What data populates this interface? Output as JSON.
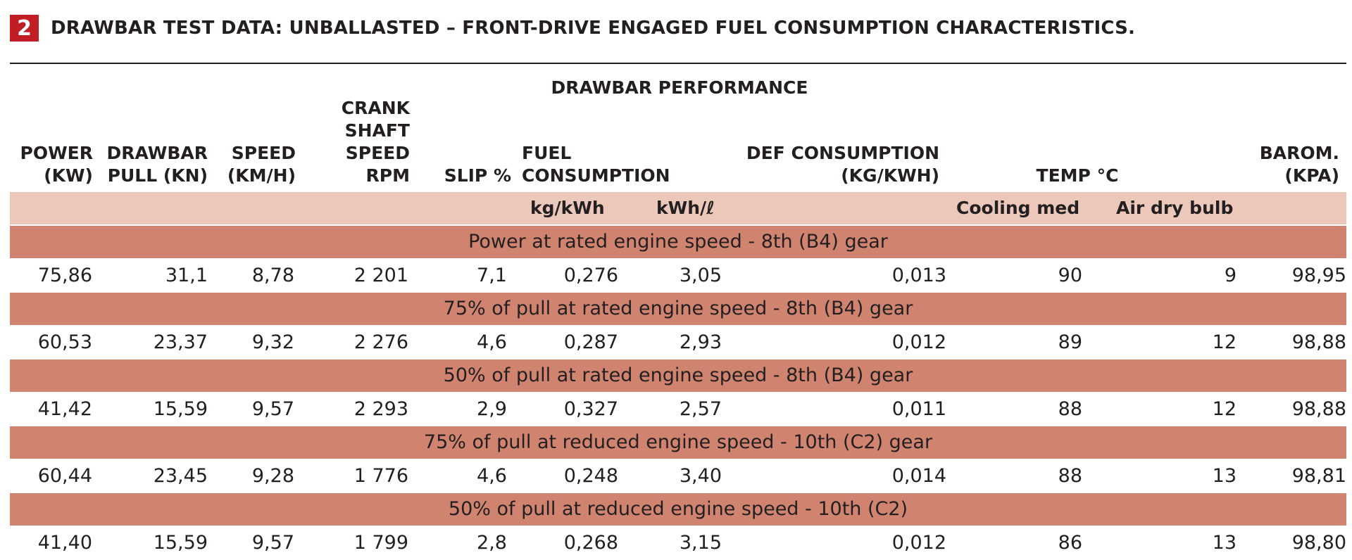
{
  "header": {
    "badge": "2",
    "title": "DRAWBAR TEST DATA: UNBALLASTED – FRONT-DRIVE ENGAGED FUEL CONSUMPTION CHARACTERISTICS."
  },
  "table": {
    "group_heading": "DRAWBAR PERFORMANCE",
    "columns": {
      "power": "POWER\n(KW)",
      "drawbar_pull": "DRAWBAR\nPULL (KN)",
      "speed": "SPEED\n(KM/H)",
      "crank": "CRANK\nSHAFT\nSPEED RPM",
      "slip": "SLIP %",
      "fuel": "FUEL CONSUMPTION",
      "def": "DEF CONSUMPTION\n(KG/KWH)",
      "temp": "TEMP °C",
      "barom": "BAROM.\n(KPA)"
    },
    "subheaders": {
      "kg_kwh": "kg/kWh",
      "kwh_l": "kWh/ℓ",
      "cooling": "Cooling med",
      "air": "Air dry bulb"
    },
    "sections": [
      {
        "label": "Power at rated engine speed - 8th (B4) gear",
        "row": {
          "power": "75,86",
          "pull": "31,1",
          "speed": "8,78",
          "rpm": "2 201",
          "slip": "7,1",
          "kg_kwh": "0,276",
          "kwh_l": "3,05",
          "def": "0,013",
          "cooling": "90",
          "air": "9",
          "barom": "98,95"
        }
      },
      {
        "label": "75% of pull at rated engine speed - 8th (B4) gear",
        "row": {
          "power": "60,53",
          "pull": "23,37",
          "speed": "9,32",
          "rpm": "2 276",
          "slip": "4,6",
          "kg_kwh": "0,287",
          "kwh_l": "2,93",
          "def": "0,012",
          "cooling": "89",
          "air": "12",
          "barom": "98,88"
        }
      },
      {
        "label": "50% of pull at rated engine speed - 8th (B4) gear",
        "row": {
          "power": "41,42",
          "pull": "15,59",
          "speed": "9,57",
          "rpm": "2 293",
          "slip": "2,9",
          "kg_kwh": "0,327",
          "kwh_l": "2,57",
          "def": "0,011",
          "cooling": "88",
          "air": "12",
          "barom": "98,88"
        }
      },
      {
        "label": "75% of pull at reduced engine speed - 10th (C2) gear",
        "row": {
          "power": "60,44",
          "pull": "23,45",
          "speed": "9,28",
          "rpm": "1 776",
          "slip": "4,6",
          "kg_kwh": "0,248",
          "kwh_l": "3,40",
          "def": "0,014",
          "cooling": "88",
          "air": "13",
          "barom": "98,81"
        }
      },
      {
        "label": "50% of pull at reduced engine speed - 10th (C2)",
        "row": {
          "power": "41,40",
          "pull": "15,59",
          "speed": "9,57",
          "rpm": "1 799",
          "slip": "2,8",
          "kg_kwh": "0,268",
          "kwh_l": "3,15",
          "def": "0,012",
          "cooling": "86",
          "air": "13",
          "barom": "98,80"
        }
      }
    ]
  }
}
